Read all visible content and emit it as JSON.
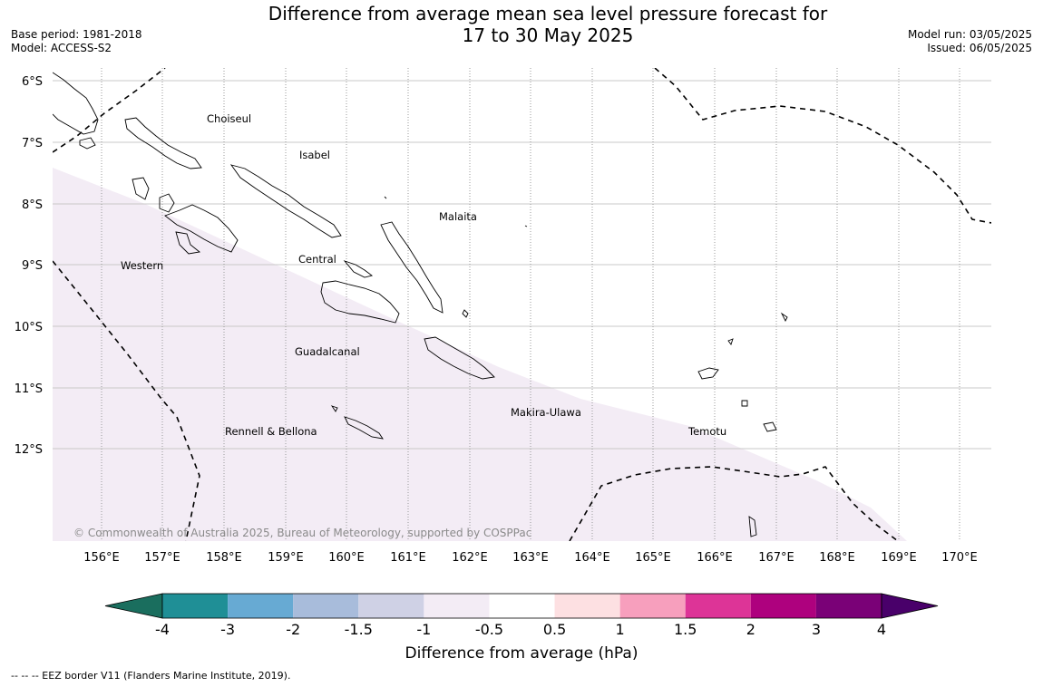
{
  "title_line1": "Difference from average mean sea level pressure forecast for",
  "title_line2": "17 to 30 May 2025",
  "meta_left": [
    "Base period: 1981-2018",
    "Model: ACCESS-S2"
  ],
  "meta_right": [
    "Model run: 03/05/2025",
    "Issued: 06/05/2025"
  ],
  "lat_labels": [
    "6°S",
    "7°S",
    "8°S",
    "9°S",
    "10°S",
    "11°S",
    "12°S"
  ],
  "lon_labels": [
    "156°E",
    "157°E",
    "158°E",
    "159°E",
    "160°E",
    "161°E",
    "162°E",
    "163°E",
    "164°E",
    "165°E",
    "166°E",
    "167°E",
    "168°E",
    "169°E",
    "170°E"
  ],
  "regions": {
    "choiseul": "Choiseul",
    "isabel": "Isabel",
    "malaita": "Malaita",
    "western": "Western",
    "central": "Central",
    "guadalcanal": "Guadalcanal",
    "makira": "Makira-Ulawa",
    "temotu": "Temotu",
    "rennell": "Rennell & Bellona"
  },
  "copyright": "© Commonwealth of Australia 2025, Bureau of Meteorology, supported by COSPPac",
  "colorbar": {
    "ticks": [
      "-4",
      "-3",
      "-2",
      "-1.5",
      "-1",
      "-0.5",
      "0.5",
      "1",
      "1.5",
      "2",
      "3",
      "4"
    ],
    "colors": [
      "#1a6e5e",
      "#1f8f96",
      "#67aad3",
      "#a8bcdb",
      "#cfd1e5",
      "#f3ecf5",
      "#ffffff",
      "#fde0e2",
      "#f79fbd",
      "#dd3497",
      "#ae017e",
      "#7a0177",
      "#49006a"
    ],
    "title": "Difference from average (hPa)"
  },
  "footer": "--  --  -- EEZ border V11 (Flanders Marine Institute, 2019).",
  "shading": {
    "shaded_category": "-1 to -0.5",
    "color": "#f3ecf5"
  }
}
